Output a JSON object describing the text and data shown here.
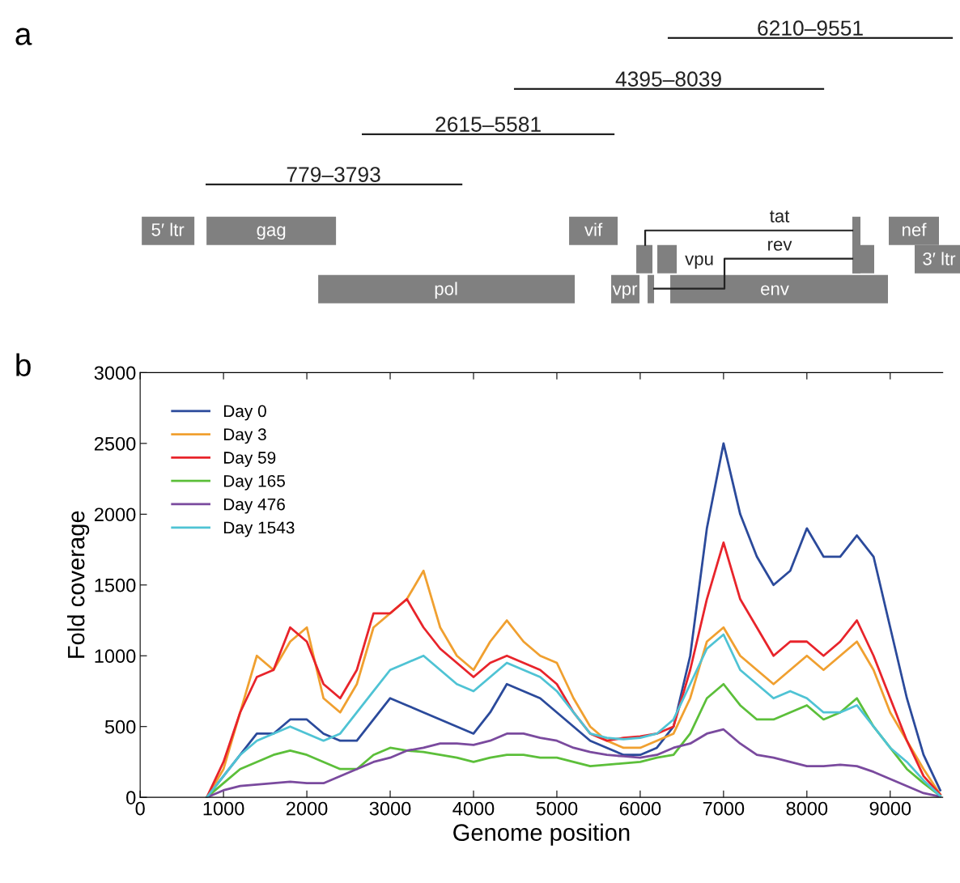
{
  "chart_data": [
    {
      "type": "other",
      "title": "a",
      "annotations": [
        "6210–9551",
        "4395–8039",
        "2615–5581",
        "779–3793",
        "5′ ltr",
        "gag",
        "vif",
        "tat",
        "nef",
        "vpu",
        "rev",
        "3′ ltr",
        "pol",
        "vpr",
        "env"
      ]
    },
    {
      "type": "line",
      "title": "b",
      "xlabel": "Genome position",
      "ylabel": "Fold coverage",
      "xlim": [
        0,
        9630
      ],
      "xticks": [
        0,
        1000,
        2000,
        3000,
        4000,
        5000,
        6000,
        7000,
        8000,
        9000
      ],
      "ylim": [
        0,
        3000
      ],
      "yticks": [
        0,
        500,
        1000,
        1500,
        2000,
        2500,
        3000
      ],
      "legend": "top left",
      "grid": false,
      "x": [
        800,
        1000,
        1200,
        1400,
        1600,
        1800,
        2000,
        2200,
        2400,
        2600,
        2800,
        3000,
        3200,
        3400,
        3600,
        3800,
        4000,
        4200,
        4400,
        4600,
        4800,
        5000,
        5200,
        5400,
        5600,
        5800,
        6000,
        6200,
        6400,
        6600,
        6800,
        7000,
        7200,
        7400,
        7600,
        7800,
        8000,
        8200,
        8400,
        8600,
        8800,
        9000,
        9200,
        9400,
        9600
      ],
      "series": [
        {
          "name": "Day 0",
          "color": "#2b4a9b",
          "values": [
            0,
            150,
            300,
            450,
            450,
            550,
            550,
            450,
            400,
            400,
            550,
            700,
            650,
            600,
            550,
            500,
            450,
            600,
            800,
            750,
            700,
            600,
            500,
            400,
            350,
            300,
            300,
            350,
            500,
            1000,
            1900,
            2500,
            2000,
            1700,
            1500,
            1600,
            1900,
            1700,
            1700,
            1850,
            1700,
            1200,
            700,
            300,
            50
          ]
        },
        {
          "name": "Day 3",
          "color": "#f0a030",
          "values": [
            0,
            200,
            600,
            1000,
            900,
            1100,
            1200,
            700,
            600,
            800,
            1200,
            1300,
            1400,
            1600,
            1200,
            1000,
            900,
            1100,
            1250,
            1100,
            1000,
            950,
            700,
            500,
            400,
            350,
            350,
            400,
            450,
            700,
            1100,
            1200,
            1000,
            900,
            800,
            900,
            1000,
            900,
            1000,
            1100,
            900,
            600,
            400,
            200,
            20
          ]
        },
        {
          "name": "Day 59",
          "color": "#e8242b",
          "values": [
            0,
            250,
            600,
            850,
            900,
            1200,
            1100,
            800,
            700,
            900,
            1300,
            1300,
            1400,
            1200,
            1050,
            950,
            850,
            950,
            1000,
            950,
            900,
            800,
            600,
            450,
            400,
            420,
            430,
            450,
            500,
            900,
            1400,
            1800,
            1400,
            1200,
            1000,
            1100,
            1100,
            1000,
            1100,
            1250,
            1000,
            700,
            400,
            150,
            20
          ]
        },
        {
          "name": "Day 165",
          "color": "#5cbf3a",
          "values": [
            0,
            100,
            200,
            250,
            300,
            330,
            300,
            250,
            200,
            200,
            300,
            350,
            330,
            320,
            300,
            280,
            250,
            280,
            300,
            300,
            280,
            280,
            250,
            220,
            230,
            240,
            250,
            280,
            300,
            450,
            700,
            800,
            650,
            550,
            550,
            600,
            650,
            550,
            600,
            700,
            500,
            350,
            200,
            100,
            10
          ]
        },
        {
          "name": "Day 476",
          "color": "#7a4a9e",
          "values": [
            0,
            50,
            80,
            90,
            100,
            110,
            100,
            100,
            150,
            200,
            250,
            280,
            330,
            350,
            380,
            380,
            370,
            400,
            450,
            450,
            420,
            400,
            350,
            320,
            300,
            290,
            280,
            300,
            350,
            380,
            450,
            480,
            380,
            300,
            280,
            250,
            220,
            220,
            230,
            220,
            180,
            130,
            80,
            30,
            5
          ]
        },
        {
          "name": "Day 1543",
          "color": "#4fc3d4",
          "values": [
            0,
            150,
            300,
            400,
            450,
            500,
            450,
            400,
            450,
            600,
            750,
            900,
            950,
            1000,
            900,
            800,
            750,
            850,
            950,
            900,
            850,
            750,
            600,
            450,
            420,
            410,
            420,
            450,
            550,
            800,
            1050,
            1150,
            900,
            800,
            700,
            750,
            700,
            600,
            600,
            650,
            500,
            350,
            250,
            120,
            10
          ]
        }
      ]
    }
  ]
}
